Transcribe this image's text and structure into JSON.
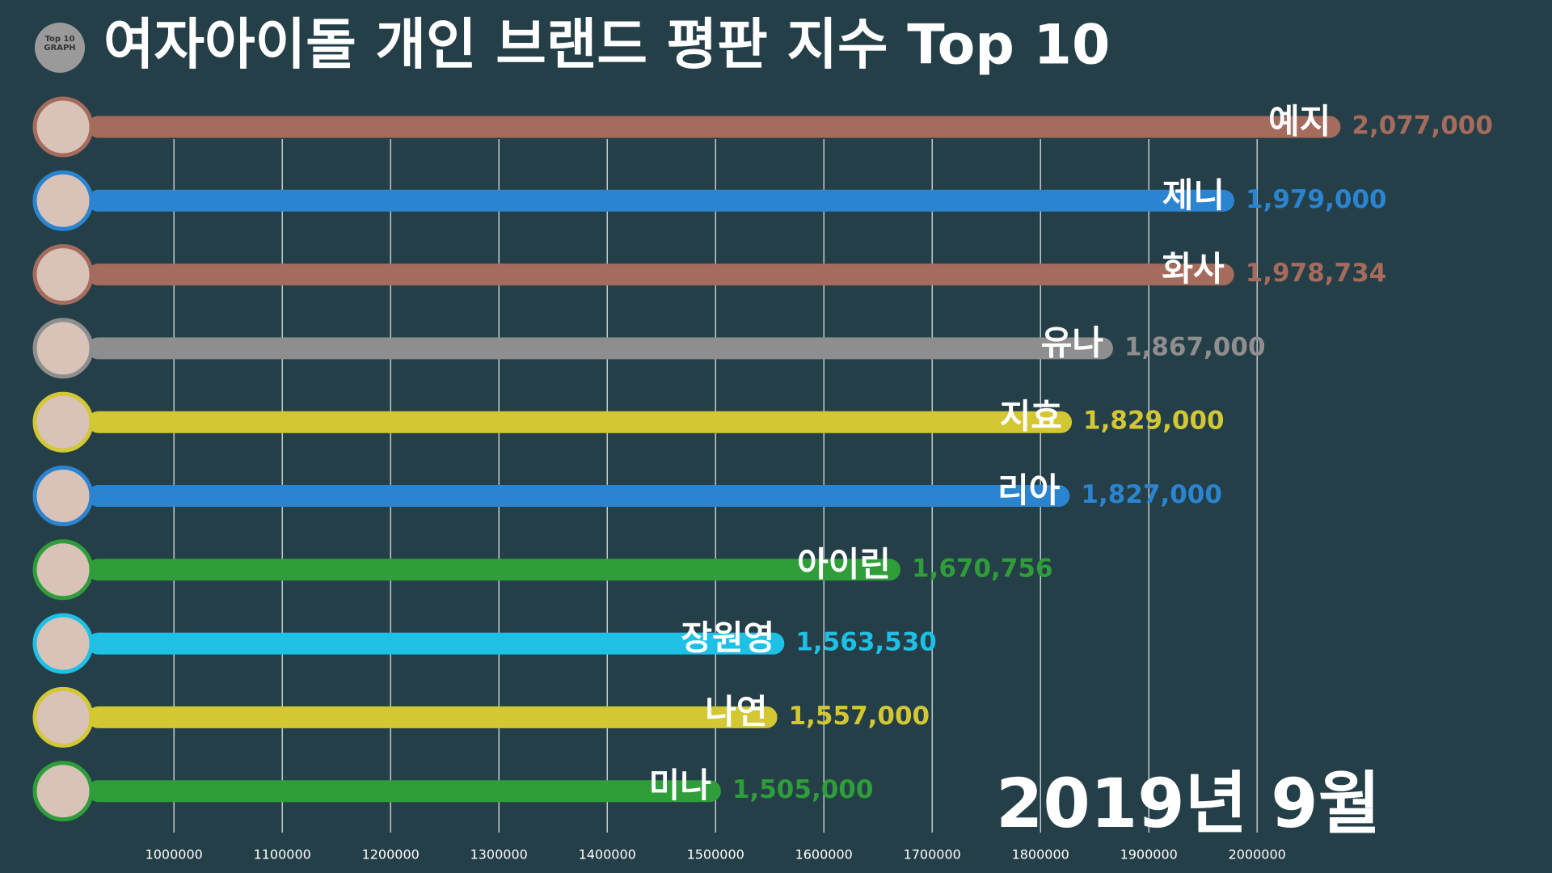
{
  "chart_data": {
    "type": "bar",
    "orientation": "horizontal",
    "title": "여자아이돌 개인 브랜드 평판 지수 Top 10",
    "logo_text": [
      "Top 10",
      "GRAPH"
    ],
    "date_label": "2019년 9월",
    "categories": [
      "예지",
      "제니",
      "화사",
      "유나",
      "지효",
      "리아",
      "아이린",
      "장원영",
      "나연",
      "미나"
    ],
    "values": [
      2077000,
      1979000,
      1978734,
      1867000,
      1829000,
      1827000,
      1670756,
      1563530,
      1557000,
      1505000
    ],
    "value_labels": [
      "2,077,000",
      "1,979,000",
      "1,978,734",
      "1,867,000",
      "1,829,000",
      "1,827,000",
      "1,670,756",
      "1,563,530",
      "1,557,000",
      "1,505,000"
    ],
    "colors": [
      "#a56b5c",
      "#2b84d0",
      "#a56b5c",
      "#8e8e8e",
      "#d3c733",
      "#2b84d0",
      "#2f9d3a",
      "#1fc0e6",
      "#d3c733",
      "#2f9d3a"
    ],
    "xlim": [
      920000,
      2270000
    ],
    "xticks": [
      1000000,
      1100000,
      1200000,
      1300000,
      1400000,
      1500000,
      1600000,
      1700000,
      1800000,
      1900000,
      2000000
    ],
    "grid": true
  }
}
